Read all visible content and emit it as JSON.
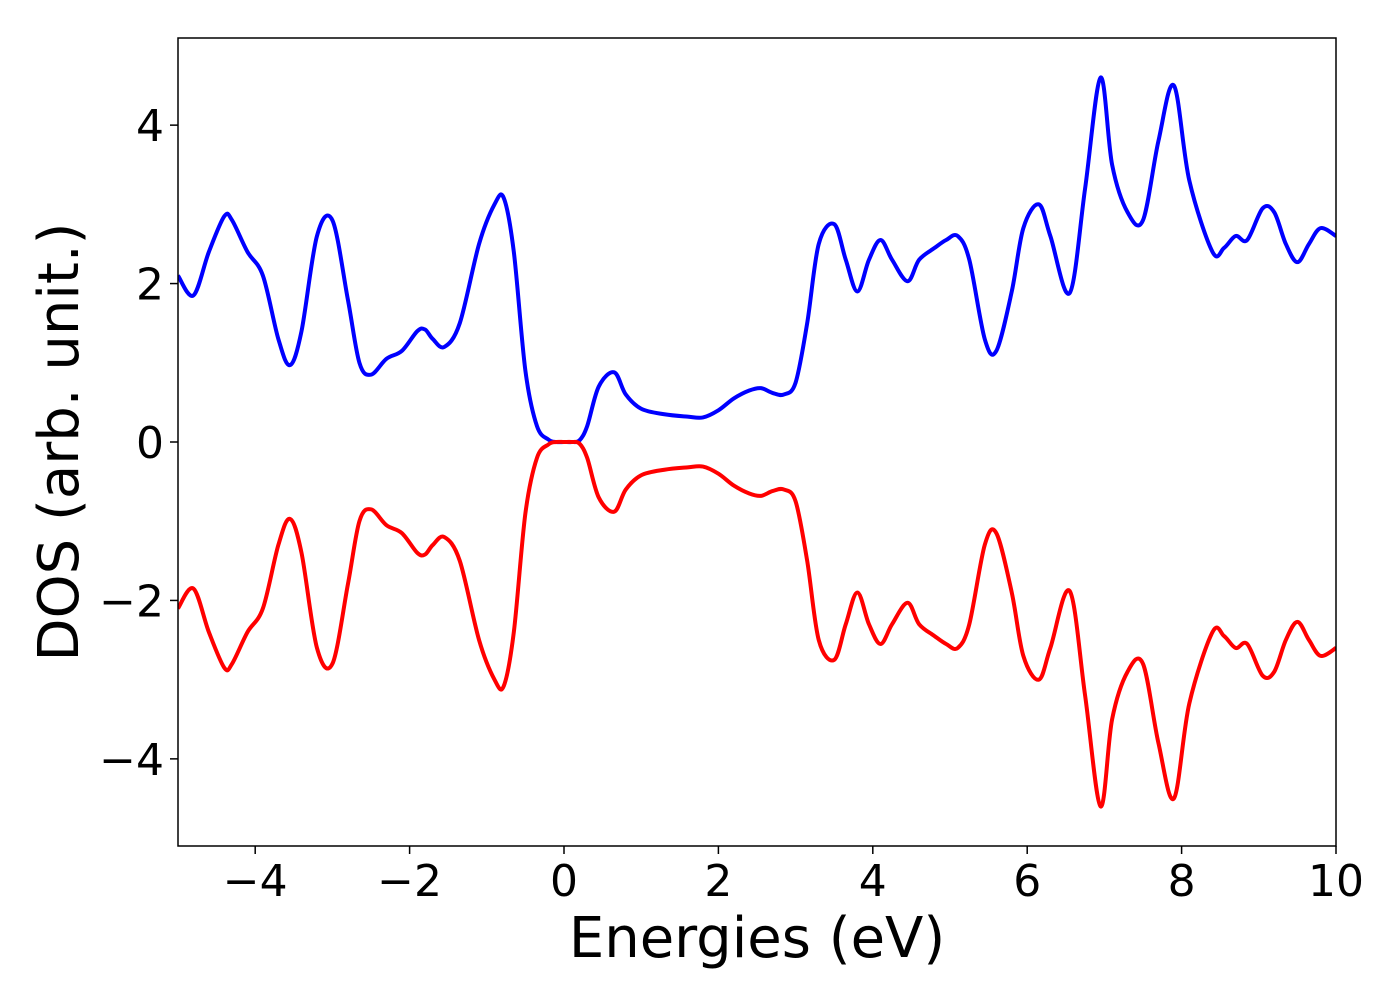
{
  "chart_data": {
    "type": "line",
    "title": "",
    "xlabel": "Energies (eV)",
    "ylabel": "DOS (arb. unit.)",
    "xlim": [
      -5,
      10
    ],
    "ylim": [
      -5.1,
      5.1
    ],
    "xticks": [
      -4,
      -2,
      0,
      2,
      4,
      6,
      8,
      10
    ],
    "yticks": [
      -4,
      -2,
      0,
      2,
      4
    ],
    "xtick_labels": [
      "−4",
      "−2",
      "0",
      "2",
      "4",
      "6",
      "8",
      "10"
    ],
    "ytick_labels": [
      "−4",
      "−2",
      "0",
      "2",
      "4"
    ],
    "grid": false,
    "legend": "none",
    "series": [
      {
        "color": "#0000ff",
        "x": [
          -5.0,
          -4.8,
          -4.6,
          -4.4,
          -4.3,
          -4.1,
          -3.9,
          -3.7,
          -3.55,
          -3.4,
          -3.2,
          -3.0,
          -2.8,
          -2.65,
          -2.5,
          -2.3,
          -2.1,
          -1.9,
          -1.8,
          -1.7,
          -1.55,
          -1.35,
          -1.1,
          -0.9,
          -0.78,
          -0.65,
          -0.5,
          -0.35,
          -0.2,
          -0.1,
          0.0,
          0.1,
          0.2,
          0.3,
          0.45,
          0.65,
          0.8,
          1.0,
          1.3,
          1.6,
          1.8,
          2.0,
          2.2,
          2.4,
          2.55,
          2.7,
          2.85,
          3.0,
          3.15,
          3.3,
          3.5,
          3.65,
          3.8,
          3.95,
          4.1,
          4.25,
          4.45,
          4.6,
          4.8,
          4.95,
          5.1,
          5.25,
          5.45,
          5.6,
          5.8,
          5.95,
          6.15,
          6.3,
          6.55,
          6.75,
          6.95,
          7.1,
          7.3,
          7.5,
          7.7,
          7.9,
          8.1,
          8.4,
          8.55,
          8.7,
          8.85,
          9.05,
          9.2,
          9.35,
          9.5,
          9.65,
          9.8,
          10.0
        ],
        "y": [
          2.1,
          1.85,
          2.4,
          2.85,
          2.8,
          2.4,
          2.1,
          1.3,
          0.97,
          1.4,
          2.6,
          2.8,
          1.8,
          1.0,
          0.85,
          1.05,
          1.15,
          1.4,
          1.42,
          1.3,
          1.2,
          1.5,
          2.5,
          3.0,
          3.08,
          2.4,
          0.9,
          0.2,
          0.03,
          0.0,
          0.0,
          0.0,
          0.02,
          0.2,
          0.7,
          0.88,
          0.6,
          0.42,
          0.35,
          0.32,
          0.31,
          0.4,
          0.55,
          0.65,
          0.68,
          0.62,
          0.6,
          0.75,
          1.5,
          2.5,
          2.75,
          2.3,
          1.9,
          2.3,
          2.55,
          2.3,
          2.03,
          2.3,
          2.45,
          2.55,
          2.6,
          2.3,
          1.3,
          1.15,
          1.9,
          2.7,
          3.0,
          2.6,
          1.88,
          3.2,
          4.6,
          3.5,
          2.9,
          2.8,
          3.8,
          4.5,
          3.3,
          2.4,
          2.45,
          2.6,
          2.55,
          2.95,
          2.9,
          2.5,
          2.27,
          2.5,
          2.7,
          2.6
        ]
      },
      {
        "color": "#ff0000",
        "x": [
          -5.0,
          -4.8,
          -4.6,
          -4.4,
          -4.3,
          -4.1,
          -3.9,
          -3.7,
          -3.55,
          -3.4,
          -3.2,
          -3.0,
          -2.8,
          -2.65,
          -2.5,
          -2.3,
          -2.1,
          -1.9,
          -1.8,
          -1.7,
          -1.55,
          -1.35,
          -1.1,
          -0.9,
          -0.78,
          -0.65,
          -0.5,
          -0.35,
          -0.2,
          -0.1,
          0.0,
          0.1,
          0.2,
          0.3,
          0.45,
          0.65,
          0.8,
          1.0,
          1.3,
          1.6,
          1.8,
          2.0,
          2.2,
          2.4,
          2.55,
          2.7,
          2.85,
          3.0,
          3.15,
          3.3,
          3.5,
          3.65,
          3.8,
          3.95,
          4.1,
          4.25,
          4.45,
          4.6,
          4.8,
          4.95,
          5.1,
          5.25,
          5.45,
          5.6,
          5.8,
          5.95,
          6.15,
          6.3,
          6.55,
          6.75,
          6.95,
          7.1,
          7.3,
          7.5,
          7.7,
          7.9,
          8.1,
          8.4,
          8.55,
          8.7,
          8.85,
          9.05,
          9.2,
          9.35,
          9.5,
          9.65,
          9.8,
          10.0
        ],
        "y": [
          -2.1,
          -1.85,
          -2.4,
          -2.85,
          -2.8,
          -2.4,
          -2.1,
          -1.3,
          -0.97,
          -1.4,
          -2.6,
          -2.8,
          -1.8,
          -1.0,
          -0.85,
          -1.05,
          -1.15,
          -1.4,
          -1.42,
          -1.3,
          -1.2,
          -1.5,
          -2.5,
          -3.0,
          -3.08,
          -2.4,
          -0.9,
          -0.2,
          -0.03,
          0.0,
          0.0,
          0.0,
          -0.02,
          -0.2,
          -0.7,
          -0.88,
          -0.6,
          -0.42,
          -0.35,
          -0.32,
          -0.31,
          -0.4,
          -0.55,
          -0.65,
          -0.68,
          -0.62,
          -0.6,
          -0.75,
          -1.5,
          -2.5,
          -2.75,
          -2.3,
          -1.9,
          -2.3,
          -2.55,
          -2.3,
          -2.03,
          -2.3,
          -2.45,
          -2.55,
          -2.6,
          -2.3,
          -1.3,
          -1.15,
          -1.9,
          -2.7,
          -3.0,
          -2.6,
          -1.88,
          -3.2,
          -4.6,
          -3.5,
          -2.9,
          -2.8,
          -3.8,
          -4.5,
          -3.3,
          -2.4,
          -2.45,
          -2.6,
          -2.55,
          -2.95,
          -2.9,
          -2.5,
          -2.27,
          -2.5,
          -2.7,
          -2.6
        ]
      }
    ]
  }
}
